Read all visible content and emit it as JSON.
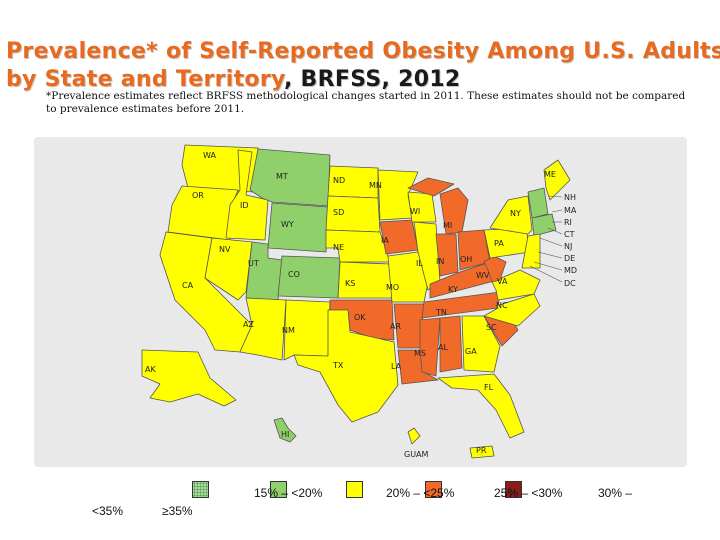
{
  "title": {
    "part1": "Prevalence*",
    "part2": " of Self-Reported Obesity Among U.S. Adults",
    "part3": "by State and Territory",
    "part4": ", BRFSS, 2012"
  },
  "subtitle": "*Prevalence estimates reflect BRFSS methodological changes started in 2011. These estimates should not be compared to prevalence estimates before 2011.",
  "colors": {
    "lt20": "#8fd06a",
    "r20_25": "#ffff00",
    "r25_30": "#f26a2a",
    "ge35": "#a8d8a0",
    "r30_35": "#8b1c1c",
    "frame": "#e9e9e9",
    "border": "#555555"
  },
  "legend": {
    "lt15": "<35%",
    "r15_20": "15% – <20%",
    "r20_25": "20% – <25%",
    "r25_30": "25% – <30%",
    "ge30": "30% –",
    "ge35": "≥35%"
  },
  "map": {
    "states": {
      "WA": "WA",
      "OR": "OR",
      "CA": "CA",
      "ID": "ID",
      "NV": "NV",
      "MT": "MT",
      "WY": "WY",
      "UT": "UT",
      "AZ": "AZ",
      "CO": "CO",
      "NM": "NM",
      "ND": "ND",
      "SD": "SD",
      "NE": "NE",
      "KS": "KS",
      "OK": "OK",
      "TX": "TX",
      "MN": "MN",
      "IA": "IA",
      "MO": "MO",
      "AR": "AR",
      "LA": "LA",
      "WI": "WI",
      "IL": "IL",
      "MI": "MI",
      "IN": "IN",
      "OH": "OH",
      "KY": "KY",
      "TN": "TN",
      "MS": "MS",
      "AL": "AL",
      "GA": "GA",
      "FL": "FL",
      "SC": "SC",
      "NC": "NC",
      "VA": "VA",
      "WV": "WV",
      "PA": "PA",
      "NY": "NY",
      "ME": "ME",
      "AK": "AK",
      "HI": "HI",
      "GUAM": "GUAM",
      "PR": "PR"
    },
    "northeast_labels": [
      "NH",
      "MA",
      "RI",
      "CT",
      "NJ",
      "DE",
      "MD",
      "DC"
    ]
  }
}
